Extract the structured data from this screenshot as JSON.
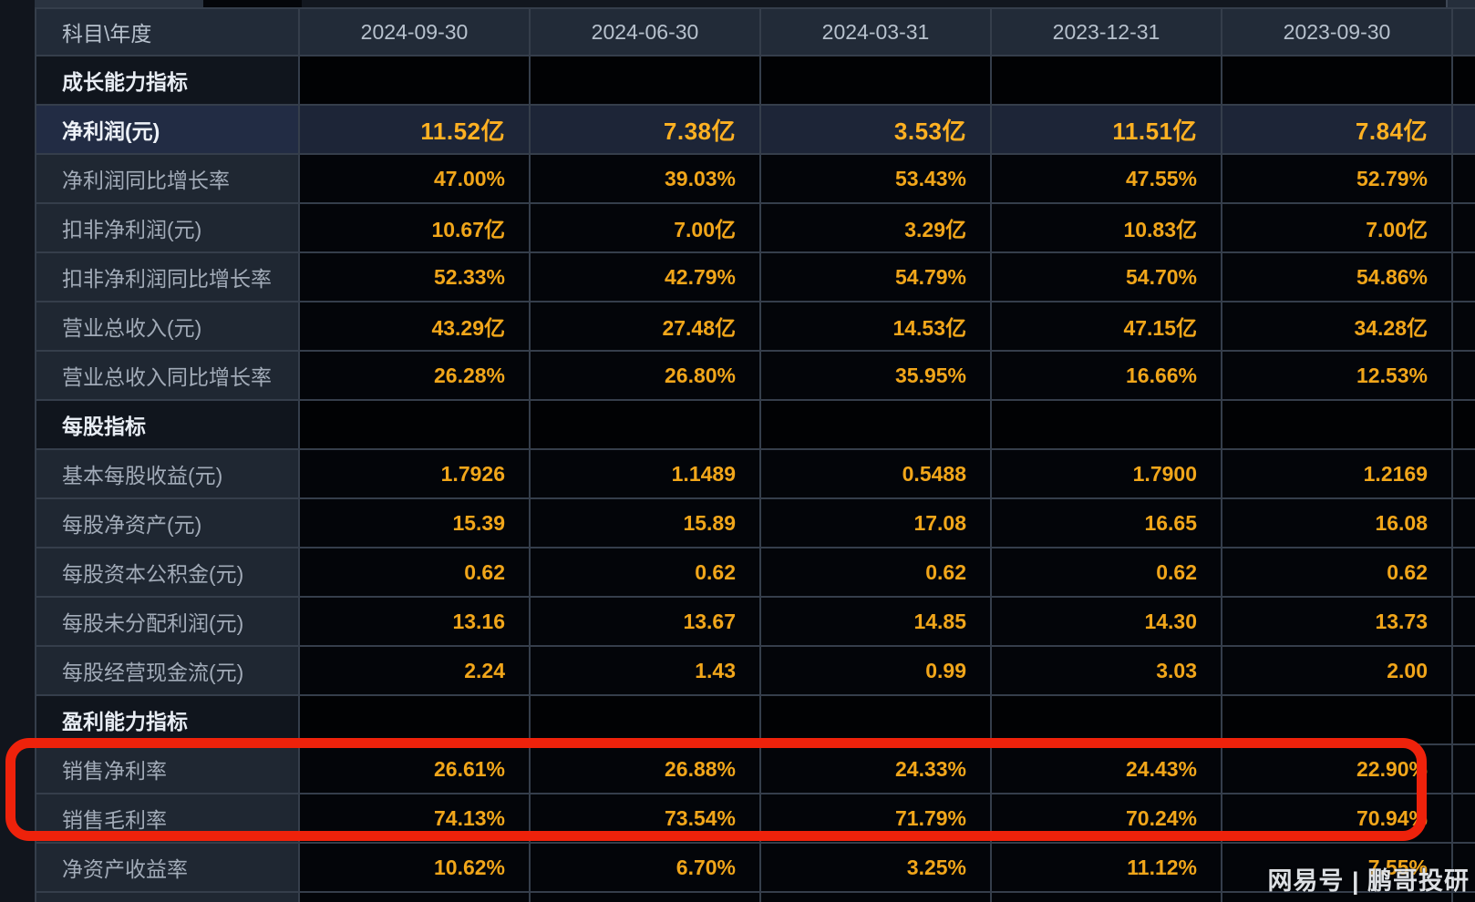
{
  "table": {
    "columns": [
      "科目\\年度",
      "2024-09-30",
      "2024-06-30",
      "2024-03-31",
      "2023-12-31",
      "2023-09-30"
    ],
    "rows": [
      {
        "type": "section",
        "label": "成长能力指标",
        "values": [
          "",
          "",
          "",
          "",
          ""
        ]
      },
      {
        "type": "highlight",
        "label": "净利润(元)",
        "values": [
          "11.52亿",
          "7.38亿",
          "3.53亿",
          "11.51亿",
          "7.84亿"
        ]
      },
      {
        "type": "data",
        "label": "净利润同比增长率",
        "values": [
          "47.00%",
          "39.03%",
          "53.43%",
          "47.55%",
          "52.79%"
        ]
      },
      {
        "type": "data",
        "label": "扣非净利润(元)",
        "values": [
          "10.67亿",
          "7.00亿",
          "3.29亿",
          "10.83亿",
          "7.00亿"
        ]
      },
      {
        "type": "data",
        "label": "扣非净利润同比增长率",
        "values": [
          "52.33%",
          "42.79%",
          "54.79%",
          "54.70%",
          "54.86%"
        ]
      },
      {
        "type": "data",
        "label": "营业总收入(元)",
        "values": [
          "43.29亿",
          "27.48亿",
          "14.53亿",
          "47.15亿",
          "34.28亿"
        ]
      },
      {
        "type": "data",
        "label": "营业总收入同比增长率",
        "values": [
          "26.28%",
          "26.80%",
          "35.95%",
          "16.66%",
          "12.53%"
        ]
      },
      {
        "type": "section",
        "label": "每股指标",
        "values": [
          "",
          "",
          "",
          "",
          ""
        ]
      },
      {
        "type": "data",
        "label": "基本每股收益(元)",
        "values": [
          "1.7926",
          "1.1489",
          "0.5488",
          "1.7900",
          "1.2169"
        ]
      },
      {
        "type": "data",
        "label": "每股净资产(元)",
        "values": [
          "15.39",
          "15.89",
          "17.08",
          "16.65",
          "16.08"
        ]
      },
      {
        "type": "data",
        "label": "每股资本公积金(元)",
        "values": [
          "0.62",
          "0.62",
          "0.62",
          "0.62",
          "0.62"
        ]
      },
      {
        "type": "data",
        "label": "每股未分配利润(元)",
        "values": [
          "13.16",
          "13.67",
          "14.85",
          "14.30",
          "13.73"
        ]
      },
      {
        "type": "data",
        "label": "每股经营现金流(元)",
        "values": [
          "2.24",
          "1.43",
          "0.99",
          "3.03",
          "2.00"
        ]
      },
      {
        "type": "section",
        "label": "盈利能力指标",
        "values": [
          "",
          "",
          "",
          "",
          ""
        ]
      },
      {
        "type": "data",
        "label": "销售净利率",
        "values": [
          "26.61%",
          "26.88%",
          "24.33%",
          "24.43%",
          "22.90%"
        ]
      },
      {
        "type": "data",
        "label": "销售毛利率",
        "values": [
          "74.13%",
          "73.54%",
          "71.79%",
          "70.24%",
          "70.94%"
        ]
      },
      {
        "type": "data",
        "label": "净资产收益率",
        "values": [
          "10.62%",
          "6.70%",
          "3.25%",
          "11.12%",
          "7.55%"
        ]
      }
    ]
  },
  "annotation": {
    "highlighted_rows": [
      "销售净利率",
      "销售毛利率"
    ],
    "box_color": "#ee220b"
  },
  "watermark": {
    "text": "网易号 | 鹏哥投研"
  },
  "colors": {
    "value_text": "#f1a61a",
    "highlight_value_text": "#ffb122",
    "header_background": "#222b38",
    "label_background": "#1f2732",
    "value_background": "#030509",
    "highlight_row_background": "#1d2537"
  }
}
